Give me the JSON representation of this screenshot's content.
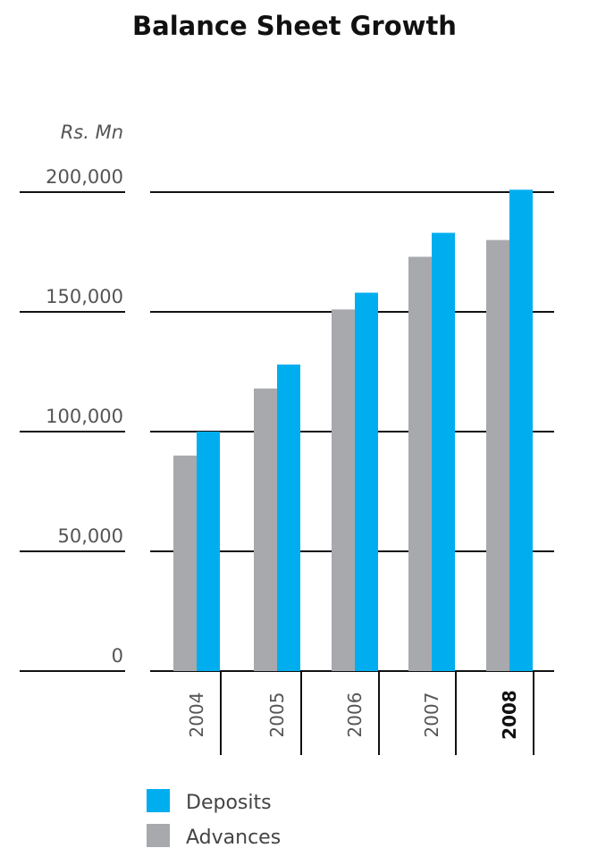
{
  "chart_data": {
    "type": "bar",
    "title": "Balance Sheet Growth",
    "ylabel": "Rs. Mn",
    "xlabel": "",
    "categories": [
      "2004",
      "2005",
      "2006",
      "2007",
      "2008"
    ],
    "highlighted_category": "2008",
    "series": [
      {
        "name": "Advances",
        "color": "#a7a9ac",
        "values": [
          90000,
          118000,
          151000,
          173000,
          180000
        ]
      },
      {
        "name": "Deposits",
        "color": "#00aeef",
        "values": [
          100000,
          128000,
          158000,
          183000,
          201000
        ]
      }
    ],
    "yticks": [
      0,
      50000,
      100000,
      150000,
      200000
    ],
    "ytick_labels": [
      "0",
      "50,000",
      "100,000",
      "150,000",
      "200,000"
    ],
    "ylim": [
      0,
      200000
    ],
    "grid": true,
    "legend": {
      "placement": "bottom-left",
      "order": [
        "Deposits",
        "Advances"
      ]
    }
  }
}
